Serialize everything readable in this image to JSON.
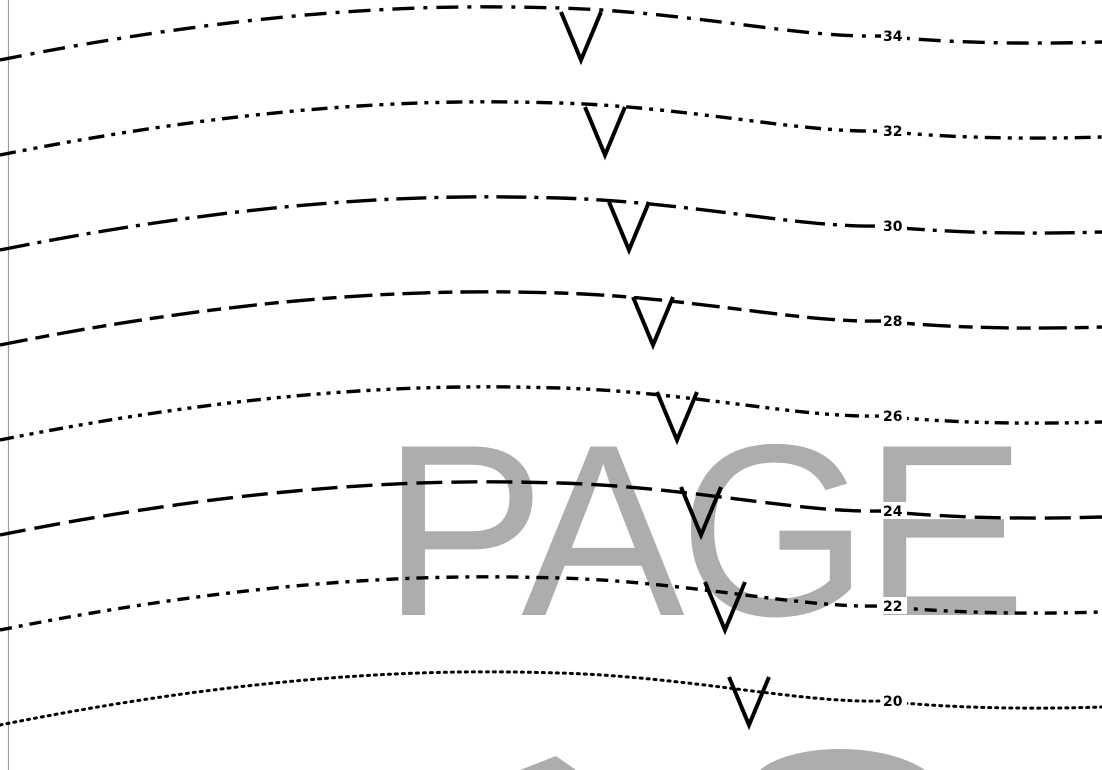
{
  "watermark": {
    "text": "PAGE",
    "second_line_text": "",
    "color": "#adadad"
  },
  "lines": [
    {
      "label": "34",
      "pattern": "dash-dot"
    },
    {
      "label": "32",
      "pattern": "dash-dot-dot"
    },
    {
      "label": "30",
      "pattern": "long-dash-dot"
    },
    {
      "label": "28",
      "pattern": "long-dash-short-dash"
    },
    {
      "label": "26",
      "pattern": "dash-dot-dot-dot"
    },
    {
      "label": "24",
      "pattern": "long-dash"
    },
    {
      "label": "22",
      "pattern": "short-dash-dot"
    },
    {
      "label": "20",
      "pattern": "dotted"
    }
  ],
  "marker_icon": "triangle-down-outline-icon",
  "colors": {
    "line": "#000000",
    "background": "#ffffff",
    "frame": "#9e9e9e"
  }
}
